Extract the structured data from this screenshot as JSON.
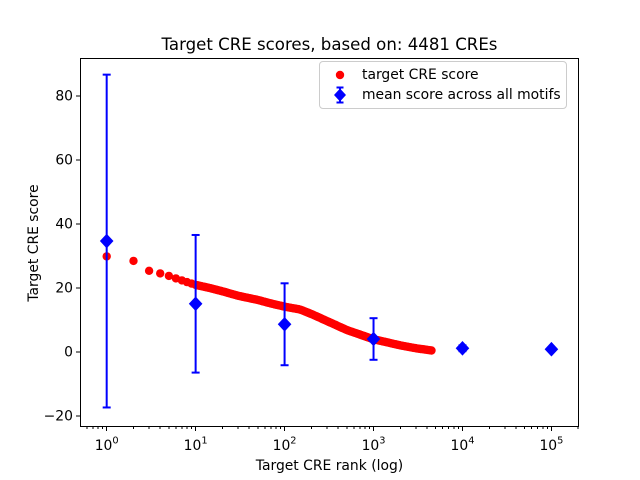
{
  "chart_data": {
    "type": "scatter",
    "title": "Target CRE scores, based on: 4481 CREs",
    "xlabel": "Target CRE rank (log)",
    "ylabel": "Target CRE score",
    "x_scale": "log",
    "grid": false,
    "background_color": "#ffffff",
    "axis_color": "#000000",
    "xlim_log10": [
      -0.3,
      5.31
    ],
    "ylim": [
      -23.5,
      91.8
    ],
    "x_ticks": [
      {
        "base": "10",
        "exp": "0",
        "value": 1
      },
      {
        "base": "10",
        "exp": "1",
        "value": 10
      },
      {
        "base": "10",
        "exp": "2",
        "value": 100
      },
      {
        "base": "10",
        "exp": "3",
        "value": 1000
      },
      {
        "base": "10",
        "exp": "4",
        "value": 10000
      },
      {
        "base": "10",
        "exp": "5",
        "value": 100000
      }
    ],
    "y_ticks": [
      {
        "label": "−20",
        "value": -20
      },
      {
        "label": "0",
        "value": 0
      },
      {
        "label": "20",
        "value": 20
      },
      {
        "label": "40",
        "value": 40
      },
      {
        "label": "60",
        "value": 60
      },
      {
        "label": "80",
        "value": 80
      }
    ],
    "series": [
      {
        "name": "target CRE score",
        "kind": "scatter-curve",
        "color": "#ff0000",
        "marker": "circle",
        "marker_radius_px": 4.2,
        "n_points_total": 4481,
        "rank_min": 1,
        "rank_max": 4481,
        "curve_samples": [
          [
            1,
            29.8
          ],
          [
            2,
            28.4
          ],
          [
            3,
            25.3
          ],
          [
            4,
            24.5
          ],
          [
            5,
            23.7
          ],
          [
            7,
            22.3
          ],
          [
            10,
            20.9
          ],
          [
            15,
            19.8
          ],
          [
            20,
            18.9
          ],
          [
            30,
            17.5
          ],
          [
            50,
            16.2
          ],
          [
            70,
            15.1
          ],
          [
            100,
            14.1
          ],
          [
            150,
            13.2
          ],
          [
            200,
            11.8
          ],
          [
            300,
            9.6
          ],
          [
            500,
            6.8
          ],
          [
            700,
            5.4
          ],
          [
            1000,
            3.9
          ],
          [
            1500,
            2.8
          ],
          [
            2000,
            2.0
          ],
          [
            3000,
            1.1
          ],
          [
            4481,
            0.4
          ]
        ]
      },
      {
        "name": "mean score across all motifs",
        "kind": "errorbar",
        "color": "#0000ff",
        "marker": "diamond",
        "x": [
          1,
          10,
          100,
          1000,
          10000,
          100000
        ],
        "y": [
          34.6,
          15.0,
          8.6,
          4.0,
          1.1,
          0.8
        ],
        "yerr": [
          52.0,
          21.5,
          12.8,
          6.5,
          0.9,
          0.4
        ]
      }
    ],
    "legend": {
      "position": "upper right",
      "entries": [
        {
          "label": "target CRE score",
          "marker": "red-circle"
        },
        {
          "label": "mean score across all motifs",
          "marker": "blue-diamond-errorbar"
        }
      ]
    }
  }
}
